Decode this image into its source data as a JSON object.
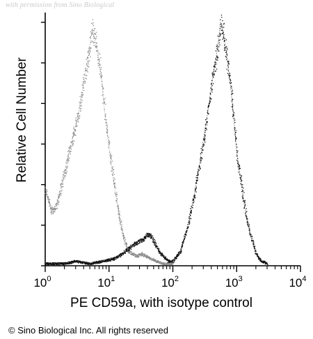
{
  "watermark": "with permission from Sino Biological",
  "copyright": "© Sino Biological Inc. All rights reserved",
  "colors": {
    "isotype": "#8a8a8a",
    "cd59a": "#111111",
    "axis": "#000000"
  },
  "chart_data": {
    "type": "histogram",
    "xlabel": "PE CD59a, with isotype control",
    "ylabel": "Relative Cell Number",
    "x_scale": "log",
    "xlim": [
      1,
      10000
    ],
    "ylim": [
      0,
      1
    ],
    "x_ticks": [
      {
        "value": 1,
        "base": "10",
        "exp": "0"
      },
      {
        "value": 10,
        "base": "10",
        "exp": "1"
      },
      {
        "value": 100,
        "base": "10",
        "exp": "2"
      },
      {
        "value": 1000,
        "base": "10",
        "exp": "3"
      },
      {
        "value": 10000,
        "base": "10",
        "exp": "4"
      }
    ],
    "y_ticks_count": 7,
    "grid": false,
    "legend": "none",
    "series": [
      {
        "style": "dotted-gray",
        "x": [
          1,
          1.1,
          1.25,
          1.45,
          1.7,
          2,
          2.3,
          2.7,
          3.2,
          3.7,
          4.2,
          4.8,
          5.4,
          6,
          6.8,
          7.6,
          8.6,
          9.8,
          11,
          12.5,
          14,
          16,
          18,
          20,
          23,
          27,
          32,
          38,
          45,
          55,
          70,
          100
        ],
        "y": [
          0.31,
          0.27,
          0.22,
          0.24,
          0.3,
          0.38,
          0.45,
          0.52,
          0.6,
          0.69,
          0.78,
          0.86,
          0.96,
          0.92,
          0.85,
          0.76,
          0.62,
          0.5,
          0.4,
          0.3,
          0.22,
          0.14,
          0.09,
          0.06,
          0.05,
          0.04,
          0.05,
          0.04,
          0.03,
          0.02,
          0.01,
          0.01
        ]
      },
      {
        "style": "dotted-black",
        "x": [
          1,
          1.5,
          2,
          3,
          5,
          8,
          12,
          16,
          20,
          25,
          30,
          35,
          40,
          45,
          50,
          60,
          70,
          85,
          100,
          130,
          170,
          220,
          280,
          350,
          420,
          500,
          560,
          620,
          700,
          800,
          900,
          1000,
          1200,
          1400,
          1700,
          2000,
          2400,
          3000
        ],
        "y": [
          0.01,
          0.01,
          0.01,
          0.02,
          0.01,
          0.02,
          0.03,
          0.05,
          0.07,
          0.09,
          0.1,
          0.11,
          0.13,
          0.12,
          0.1,
          0.06,
          0.04,
          0.02,
          0.02,
          0.06,
          0.16,
          0.3,
          0.46,
          0.62,
          0.76,
          0.88,
          0.99,
          0.94,
          0.85,
          0.73,
          0.6,
          0.46,
          0.32,
          0.2,
          0.11,
          0.05,
          0.02,
          0.01
        ]
      }
    ]
  }
}
